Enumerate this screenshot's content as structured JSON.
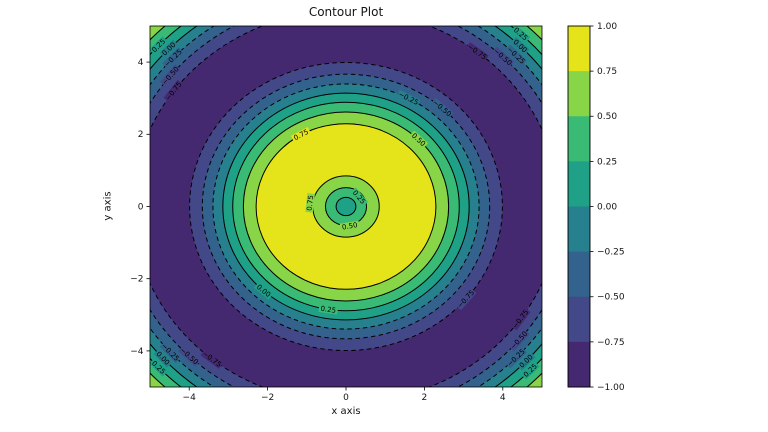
{
  "title": "Contour Plot",
  "axes": {
    "xlabel": "x axis",
    "ylabel": "y axis",
    "xlim": [
      -5,
      5
    ],
    "ylim": [
      -5,
      5
    ],
    "x_ticks": [
      "−4",
      "−2",
      "0",
      "2",
      "4"
    ],
    "x_tick_values": [
      -4,
      -2,
      0,
      2,
      4
    ],
    "y_ticks": [
      "4",
      "2",
      "0",
      "−2",
      "−4"
    ],
    "y_tick_values": [
      4,
      2,
      0,
      -2,
      -4
    ],
    "grid": false
  },
  "colorbar": {
    "tick_labels": [
      "1.00",
      "0.75",
      "0.50",
      "0.25",
      "0.00",
      "−0.25",
      "−0.50",
      "−0.75",
      "−1.00"
    ],
    "tick_values": [
      1,
      0.75,
      0.5,
      0.25,
      0,
      -0.25,
      -0.5,
      -0.75,
      -1
    ],
    "outline_color": "#000000"
  },
  "chart_data": {
    "type": "contour",
    "title": "Contour Plot",
    "xlabel": "x axis",
    "ylabel": "y axis",
    "x_range": [
      -5,
      5
    ],
    "y_range": [
      -5,
      5
    ],
    "z_range": [
      -1,
      1
    ],
    "z_function_inferred": "z = sin(sqrt(x^2 + y^2)), radially symmetric about (0,0)",
    "colormap": "viridis",
    "levels": [
      -1,
      -0.75,
      -0.5,
      -0.25,
      0,
      0.25,
      0.5,
      0.75,
      1
    ],
    "band_palette_low_to_high": [
      "#452970",
      "#434889",
      "#33638d",
      "#27808e",
      "#1fa188",
      "#3abb75",
      "#89d548",
      "#e5e41a"
    ],
    "background_band": 6,
    "band_fills_outer_to_inner": [
      {
        "r": 6.8068,
        "band": 5
      },
      {
        "r": 6.5359,
        "band": 4
      },
      {
        "r": 6.2832,
        "band": 3
      },
      {
        "r": 6.0305,
        "band": 2
      },
      {
        "r": 5.7596,
        "band": 1
      },
      {
        "r": 5.4351,
        "band": 0
      },
      {
        "r": 3.9897,
        "band": 1
      },
      {
        "r": 3.6652,
        "band": 2
      },
      {
        "r": 3.3943,
        "band": 3
      },
      {
        "r": 3.1416,
        "band": 4
      },
      {
        "r": 2.8889,
        "band": 5
      },
      {
        "r": 2.618,
        "band": 6
      },
      {
        "r": 2.2935,
        "band": 7
      },
      {
        "r": 0.8481,
        "band": 6
      },
      {
        "r": 0.5236,
        "band": 5
      },
      {
        "r": 0.2527,
        "band": 4
      }
    ],
    "contour_lines": [
      {
        "level": 0.75,
        "radii": [
          0.8481,
          2.2935
        ],
        "style": "solid"
      },
      {
        "level": 0.5,
        "radii": [
          0.5236,
          2.618,
          6.8068
        ],
        "style": "solid"
      },
      {
        "level": 0.25,
        "radii": [
          0.2527,
          2.8889,
          6.5359
        ],
        "style": "solid"
      },
      {
        "level": 0.0,
        "radii": [
          3.1416,
          6.2832
        ],
        "style": "solid"
      },
      {
        "level": -0.25,
        "radii": [
          3.3943,
          6.0305
        ],
        "style": "dashed"
      },
      {
        "level": -0.5,
        "radii": [
          3.6652,
          5.7596
        ],
        "style": "dashed"
      },
      {
        "level": -0.75,
        "radii": [
          3.9897,
          5.4351
        ],
        "style": "dashed"
      }
    ],
    "line_color": "#000000",
    "labels": [
      {
        "text": "0.25",
        "r": 0.42,
        "angle": 38,
        "bg": 5
      },
      {
        "text": "0.50",
        "r": 0.55,
        "angle": 280,
        "bg": 6
      },
      {
        "text": "0.75",
        "r": 0.92,
        "angle": 174,
        "bg": 6
      },
      {
        "text": "0.75",
        "r": 2.2935,
        "angle": 120,
        "bg": 7
      },
      {
        "text": "0.50",
        "r": 2.618,
        "angle": 45,
        "bg": 6
      },
      {
        "text": "0.25",
        "r": 2.8889,
        "angle": 261,
        "bg": 5
      },
      {
        "text": "0.00",
        "r": 3.1416,
        "angle": 228,
        "bg": 4
      },
      {
        "text": "−0.25",
        "r": 3.3943,
        "angle": 62,
        "bg": 3
      },
      {
        "text": "−0.50",
        "r": 3.6652,
        "angle": 48,
        "bg": 2
      },
      {
        "text": "−0.75",
        "r": 3.9897,
        "angle": 320,
        "bg": 1
      },
      {
        "text": "−0.75",
        "r": 5.4351,
        "angle": 52,
        "bg": 0
      },
      {
        "text": "−0.50",
        "r": 5.7596,
        "angle": 46,
        "bg": 1
      },
      {
        "text": "−0.25",
        "r": 6.0305,
        "angle": 44,
        "bg": 2
      },
      {
        "text": "0.00",
        "r": 6.2832,
        "angle": 45,
        "bg": 3
      },
      {
        "text": "0.25",
        "r": 6.5359,
        "angle": 47,
        "bg": 4
      },
      {
        "text": "0.25",
        "r": 6.5359,
        "angle": 137,
        "bg": 4
      },
      {
        "text": "0.00",
        "r": 6.2832,
        "angle": 136,
        "bg": 3
      },
      {
        "text": "−0.25",
        "r": 6.0305,
        "angle": 137,
        "bg": 2
      },
      {
        "text": "−0.50",
        "r": 5.7596,
        "angle": 141,
        "bg": 1
      },
      {
        "text": "−0.75",
        "r": 5.4351,
        "angle": 144,
        "bg": 0
      },
      {
        "text": "−0.75",
        "r": 5.4351,
        "angle": 231,
        "bg": 0
      },
      {
        "text": "−0.50",
        "r": 5.7596,
        "angle": 226,
        "bg": 1
      },
      {
        "text": "−0.25",
        "r": 6.0305,
        "angle": 222,
        "bg": 2
      },
      {
        "text": "0.00",
        "r": 6.2832,
        "angle": 222,
        "bg": 3
      },
      {
        "text": "0.25",
        "r": 6.5359,
        "angle": 223,
        "bg": 4
      },
      {
        "text": "−0.75",
        "r": 5.4351,
        "angle": 325,
        "bg": 0
      },
      {
        "text": "−0.50",
        "r": 5.7596,
        "angle": 320,
        "bg": 1
      },
      {
        "text": "−0.25",
        "r": 6.0305,
        "angle": 316,
        "bg": 2
      },
      {
        "text": "0.00",
        "r": 6.2832,
        "angle": 317,
        "bg": 3
      },
      {
        "text": "0.25",
        "r": 6.5359,
        "angle": 316,
        "bg": 4
      }
    ]
  }
}
